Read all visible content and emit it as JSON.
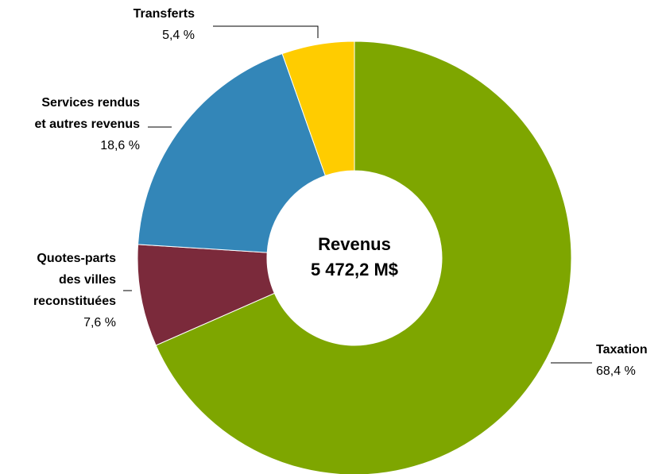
{
  "chart_data": {
    "type": "donut",
    "center_label": [
      "Revenus",
      "5 472,2 M$"
    ],
    "categories": [
      [
        "Taxation"
      ],
      [
        "Quotes-parts",
        "des villes",
        "reconstituées"
      ],
      [
        "Services rendus",
        "et autres revenus"
      ],
      [
        "Transferts"
      ]
    ],
    "values": [
      68.4,
      7.6,
      18.6,
      5.4
    ],
    "value_labels": [
      "68,4 %",
      "7,6 %",
      "18,6 %",
      "5,4 %"
    ],
    "colors": [
      "#7ea600",
      "#7b2a3b",
      "#3386b8",
      "#ffcc00"
    ]
  }
}
